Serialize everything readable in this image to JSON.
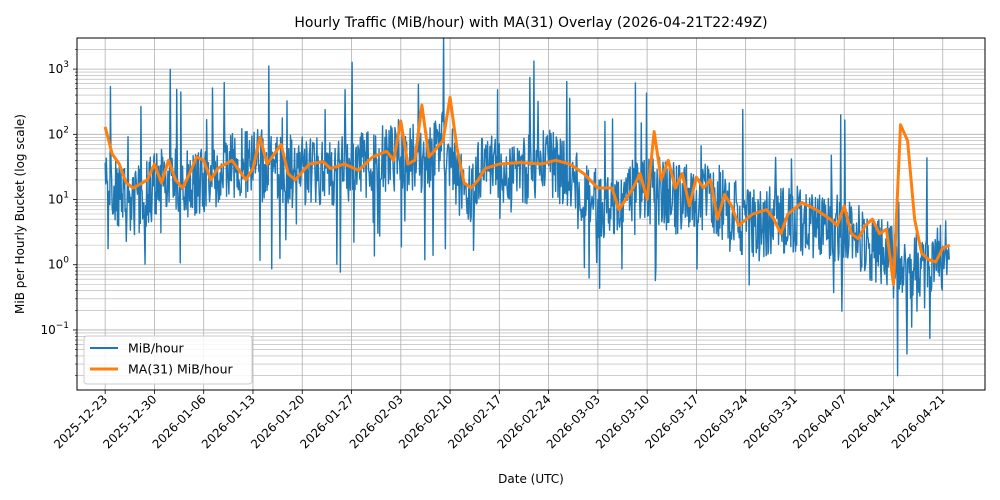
{
  "chart_data": {
    "type": "line",
    "title": "Hourly Traffic (MiB/hour) with MA(31) Overlay (2026-04-21T22:49Z)",
    "xlabel": "Date (UTC)",
    "ylabel": "MiB per Hourly Bucket (log scale)",
    "yscale": "log",
    "ylim": [
      0.012,
      3000
    ],
    "xlim": [
      "2025-12-19",
      "2026-04-27"
    ],
    "grid": "major and minor",
    "legend_position": "lower-left",
    "x_ticks": [
      "2025-12-23",
      "2025-12-30",
      "2026-01-06",
      "2026-01-13",
      "2026-01-20",
      "2026-01-27",
      "2026-02-03",
      "2026-02-10",
      "2026-02-17",
      "2026-02-24",
      "2026-03-03",
      "2026-03-10",
      "2026-03-17",
      "2026-03-24",
      "2026-03-31",
      "2026-04-07",
      "2026-04-14",
      "2026-04-21"
    ],
    "y_ticks": [
      {
        "value": 0.1,
        "base": "10",
        "exp": "−1"
      },
      {
        "value": 1,
        "base": "10",
        "exp": "0"
      },
      {
        "value": 10,
        "base": "10",
        "exp": "1"
      },
      {
        "value": 100,
        "base": "10",
        "exp": "2"
      },
      {
        "value": 1000,
        "base": "10",
        "exp": "3"
      }
    ],
    "series": [
      {
        "name": "MiB/hour",
        "color": "#1f77b4",
        "x": [
          "2025-12-23",
          "2025-12-26",
          "2025-12-29",
          "2026-01-01",
          "2026-01-04",
          "2026-01-07",
          "2026-01-10",
          "2026-01-13",
          "2026-01-16",
          "2026-01-19",
          "2026-01-22",
          "2026-01-25",
          "2026-01-28",
          "2026-01-31",
          "2026-02-03",
          "2026-02-06",
          "2026-02-09",
          "2026-02-12",
          "2026-02-15",
          "2026-02-18",
          "2026-02-21",
          "2026-02-24",
          "2026-02-27",
          "2026-03-02",
          "2026-03-05",
          "2026-03-08",
          "2026-03-11",
          "2026-03-14",
          "2026-03-17",
          "2026-03-20",
          "2026-03-23",
          "2026-03-26",
          "2026-03-29",
          "2026-04-01",
          "2026-04-04",
          "2026-04-07",
          "2026-04-10",
          "2026-04-13",
          "2026-04-16",
          "2026-04-17",
          "2026-04-19",
          "2026-04-22"
        ],
        "values": [
          20,
          8,
          12,
          25,
          15,
          20,
          30,
          40,
          25,
          30,
          25,
          30,
          35,
          40,
          50,
          40,
          80,
          12,
          30,
          30,
          30,
          35,
          20,
          8,
          10,
          12,
          15,
          10,
          12,
          10,
          5,
          4,
          5,
          5,
          4,
          3,
          2,
          1.5,
          0.5,
          1,
          1,
          1.5
        ]
      },
      {
        "name": "MA(31) MiB/hour",
        "color": "#ff7f0e",
        "x": [
          "2025-12-23",
          "2025-12-24",
          "2025-12-25",
          "2025-12-26",
          "2025-12-27",
          "2025-12-29",
          "2025-12-30",
          "2025-12-31",
          "2026-01-01",
          "2026-01-02",
          "2026-01-03",
          "2026-01-04",
          "2026-01-05",
          "2026-01-06",
          "2026-01-07",
          "2026-01-08",
          "2026-01-10",
          "2026-01-12",
          "2026-01-13",
          "2026-01-14",
          "2026-01-15",
          "2026-01-17",
          "2026-01-18",
          "2026-01-19",
          "2026-01-21",
          "2026-01-23",
          "2026-01-24",
          "2026-01-26",
          "2026-01-28",
          "2026-01-30",
          "2026-02-01",
          "2026-02-02",
          "2026-02-03",
          "2026-02-04",
          "2026-02-05",
          "2026-02-06",
          "2026-02-07",
          "2026-02-08",
          "2026-02-09",
          "2026-02-10",
          "2026-02-11",
          "2026-02-12",
          "2026-02-13",
          "2026-02-14",
          "2026-02-15",
          "2026-02-17",
          "2026-02-20",
          "2026-02-23",
          "2026-02-25",
          "2026-02-27",
          "2026-03-01",
          "2026-03-03",
          "2026-03-05",
          "2026-03-06",
          "2026-03-08",
          "2026-03-09",
          "2026-03-10",
          "2026-03-11",
          "2026-03-12",
          "2026-03-13",
          "2026-03-14",
          "2026-03-15",
          "2026-03-16",
          "2026-03-17",
          "2026-03-18",
          "2026-03-19",
          "2026-03-20",
          "2026-03-21",
          "2026-03-22",
          "2026-03-23",
          "2026-03-25",
          "2026-03-27",
          "2026-03-28",
          "2026-03-29",
          "2026-03-30",
          "2026-04-01",
          "2026-04-03",
          "2026-04-05",
          "2026-04-06",
          "2026-04-07",
          "2026-04-08",
          "2026-04-09",
          "2026-04-10",
          "2026-04-11",
          "2026-04-12",
          "2026-04-13",
          "2026-04-14",
          "2026-04-15",
          "2026-04-16",
          "2026-04-17",
          "2026-04-18",
          "2026-04-19",
          "2026-04-20",
          "2026-04-21",
          "2026-04-22"
        ],
        "values": [
          130,
          50,
          35,
          18,
          15,
          20,
          35,
          18,
          40,
          20,
          15,
          25,
          45,
          40,
          20,
          30,
          40,
          20,
          30,
          90,
          35,
          70,
          25,
          20,
          35,
          38,
          30,
          35,
          28,
          45,
          55,
          40,
          160,
          35,
          40,
          280,
          45,
          60,
          80,
          370,
          60,
          18,
          15,
          20,
          30,
          35,
          37,
          35,
          40,
          35,
          25,
          15,
          15,
          7,
          15,
          25,
          10,
          110,
          20,
          40,
          15,
          25,
          8,
          22,
          15,
          20,
          5,
          12,
          8,
          4,
          6,
          7,
          5,
          3,
          6,
          9,
          7,
          5,
          4,
          8,
          3,
          2.5,
          4,
          5,
          3,
          3.5,
          0.5,
          140,
          80,
          5,
          1.5,
          1.2,
          1.1,
          1.8,
          2
        ]
      }
    ]
  }
}
